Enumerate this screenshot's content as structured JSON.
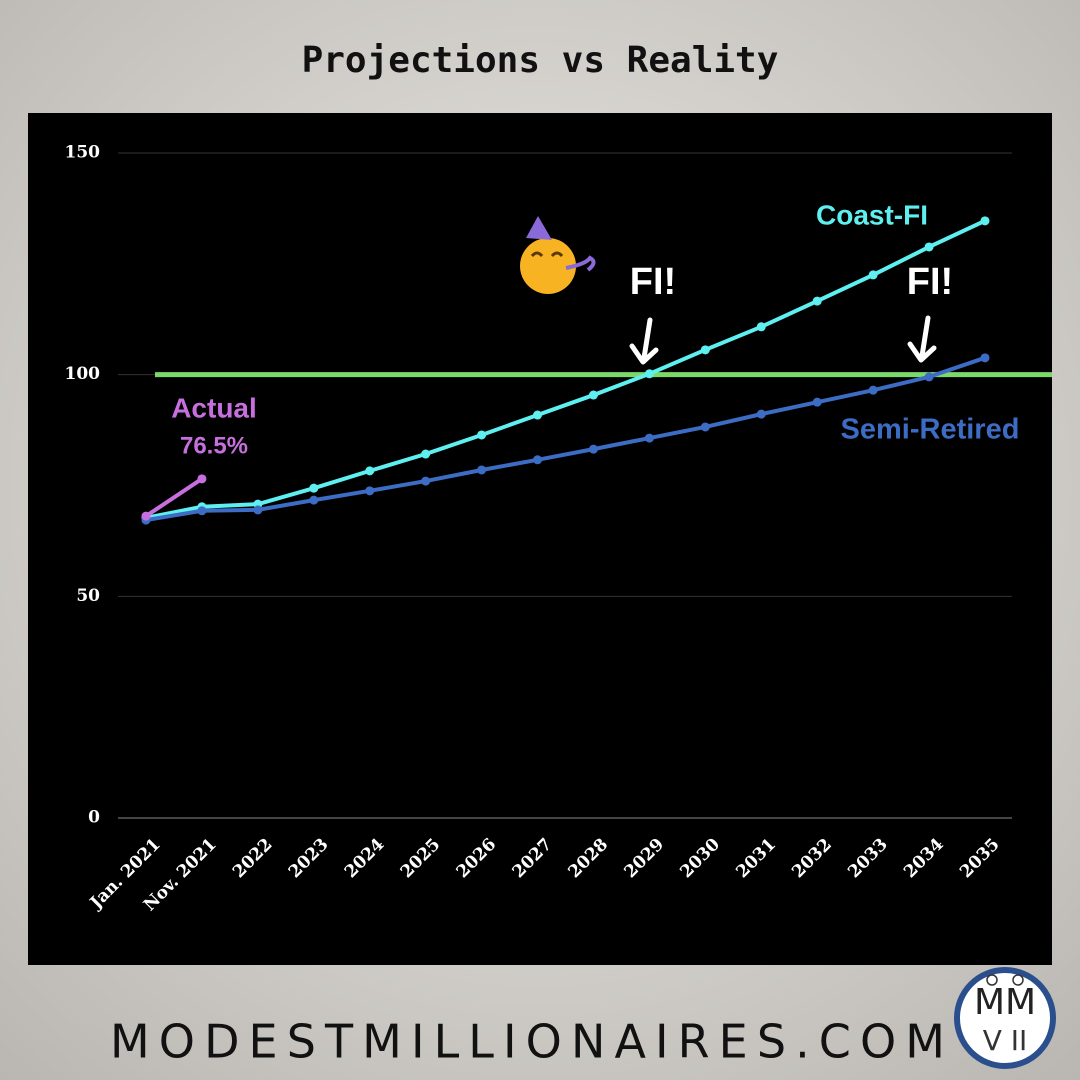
{
  "chart_data": {
    "type": "line",
    "title": "Projections vs Reality",
    "categories": [
      "Jan. 2021",
      "Nov. 2021",
      "2022",
      "2023",
      "2024",
      "2025",
      "2026",
      "2027",
      "2028",
      "2029",
      "2030",
      "2031",
      "2032",
      "2033",
      "2034",
      "2035"
    ],
    "series": [
      {
        "name": "Coast-FI",
        "color": "#5ef0f0",
        "values": [
          67.7,
          70.2,
          70.8,
          74.4,
          78.3,
          82.1,
          86.4,
          90.9,
          95.4,
          100.2,
          105.6,
          110.8,
          116.6,
          122.5,
          128.8,
          134.7
        ]
      },
      {
        "name": "Semi-Retired",
        "color": "#3d6cc4",
        "values": [
          67.2,
          69.3,
          69.5,
          71.7,
          73.8,
          76.0,
          78.5,
          80.8,
          83.2,
          85.7,
          88.2,
          91.1,
          93.8,
          96.5,
          99.5,
          103.8
        ]
      },
      {
        "name": "Actual",
        "color": "#c86fe0",
        "values": [
          68.1,
          76.5,
          null,
          null,
          null,
          null,
          null,
          null,
          null,
          null,
          null,
          null,
          null,
          null,
          null,
          null
        ],
        "value_labels": [
          null,
          "76.5%",
          null,
          null,
          null,
          null,
          null,
          null,
          null,
          null,
          null,
          null,
          null,
          null,
          null,
          null
        ]
      }
    ],
    "target": {
      "value": 100,
      "color": "#7bd96a"
    },
    "annotations": [
      "FI!",
      "FI!"
    ],
    "ylim": [
      0,
      150
    ],
    "yticks": [
      0,
      50,
      100,
      150
    ],
    "grid": true
  },
  "footer": "MODESTMILLIONAIRES.COM",
  "logo": {
    "top": "MM",
    "bottom": "V II"
  }
}
